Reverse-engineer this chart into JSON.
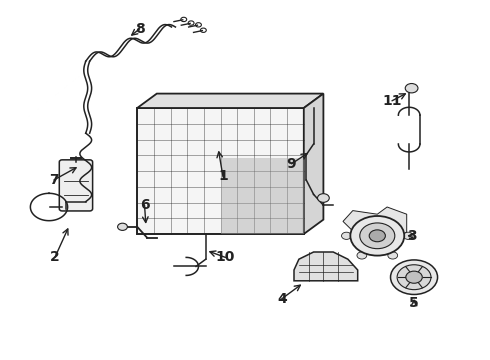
{
  "bg_color": "#ffffff",
  "line_color": "#222222",
  "figsize": [
    4.9,
    3.6
  ],
  "dpi": 100
}
